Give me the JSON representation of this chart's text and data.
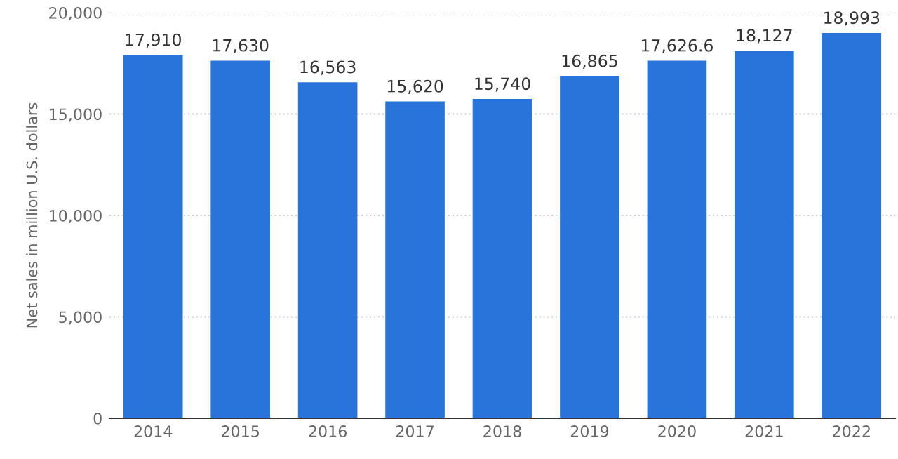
{
  "chart_data": {
    "type": "bar",
    "ylabel": "Net sales in million U.S. dollars",
    "categories": [
      "2014",
      "2015",
      "2016",
      "2017",
      "2018",
      "2019",
      "2020",
      "2021",
      "2022"
    ],
    "values": [
      17910,
      17630,
      16563,
      15620,
      15740,
      16865,
      17626.6,
      18127,
      18993
    ],
    "value_labels": [
      "17,910",
      "17,630",
      "16,563",
      "15,620",
      "15,740",
      "16,865",
      "17,626.6",
      "18,127",
      "18,993"
    ],
    "color": "#2874db",
    "ylim": [
      0,
      20000
    ],
    "yticks": [
      {
        "value": 0,
        "label": "0"
      },
      {
        "value": 5000,
        "label": "5,000"
      },
      {
        "value": 10000,
        "label": "10,000"
      },
      {
        "value": 15000,
        "label": "15,000"
      },
      {
        "value": 20000,
        "label": "20,000"
      }
    ],
    "grid": "y"
  }
}
